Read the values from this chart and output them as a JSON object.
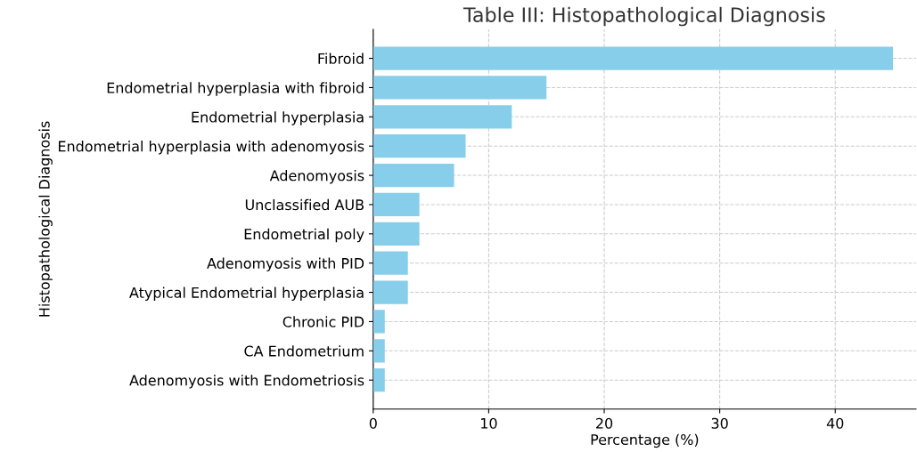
{
  "chart_data": {
    "type": "bar",
    "orientation": "horizontal",
    "title": "Table III: Histopathological Diagnosis",
    "xlabel": "Percentage (%)",
    "ylabel": "Histopathological Diagnosis",
    "categories": [
      "Fibroid",
      "Endometrial hyperplasia with fibroid",
      "Endometrial hyperplasia",
      "Endometrial hyperplasia with adenomyosis",
      "Adenomyosis",
      "Unclassified AUB",
      "Endometrial poly",
      "Adenomyosis with PID",
      "Atypical Endometrial hyperplasia",
      "Chronic PID",
      "CA Endometrium",
      "Adenomyosis with Endometriosis"
    ],
    "values": [
      45,
      15,
      12,
      8,
      7,
      4,
      4,
      3,
      3,
      1,
      1,
      1
    ],
    "color": "#87ceeb",
    "xlim": [
      0,
      47
    ],
    "xticks": [
      0,
      10,
      20,
      30,
      40
    ],
    "grid": true
  }
}
